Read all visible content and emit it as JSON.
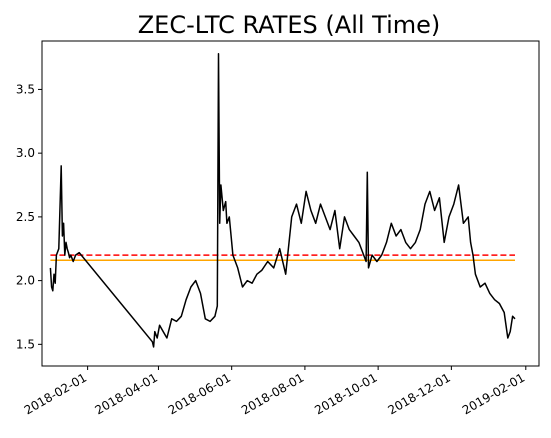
{
  "chart_data": {
    "type": "line",
    "title": "ZEC-LTC RATES (All Time)",
    "xlabel": "",
    "ylabel": "",
    "x_ticks": [
      "2018-02-01",
      "2018-04-01",
      "2018-06-01",
      "2018-08-01",
      "2018-10-01",
      "2018-12-01",
      "2019-02-01"
    ],
    "y_ticks": [
      "1.5",
      "2.0",
      "2.5",
      "3.0",
      "3.5"
    ],
    "xlim": [
      "2017-12-25",
      "2019-02-12"
    ],
    "ylim": [
      1.33,
      3.88
    ],
    "grid": false,
    "legend": "none",
    "series": [
      {
        "color": "#000000",
        "x": [
          "2018-01-01",
          "2018-01-02",
          "2018-01-03",
          "2018-01-04",
          "2018-01-05",
          "2018-01-06",
          "2018-01-08",
          "2018-01-10",
          "2018-01-11",
          "2018-01-12",
          "2018-01-13",
          "2018-01-14",
          "2018-01-15",
          "2018-01-16",
          "2018-01-17",
          "2018-01-18",
          "2018-01-20",
          "2018-01-22",
          "2018-01-25",
          "2018-03-27",
          "2018-03-28",
          "2018-03-29",
          "2018-03-31",
          "2018-04-02",
          "2018-04-05",
          "2018-04-08",
          "2018-04-12",
          "2018-04-16",
          "2018-04-20",
          "2018-04-24",
          "2018-04-28",
          "2018-05-02",
          "2018-05-06",
          "2018-05-10",
          "2018-05-14",
          "2018-05-18",
          "2018-05-20",
          "2018-05-21",
          "2018-05-22",
          "2018-05-23",
          "2018-05-25",
          "2018-05-27",
          "2018-05-28",
          "2018-05-30",
          "2018-06-02",
          "2018-06-06",
          "2018-06-10",
          "2018-06-14",
          "2018-06-18",
          "2018-06-22",
          "2018-06-26",
          "2018-07-01",
          "2018-07-06",
          "2018-07-11",
          "2018-07-16",
          "2018-07-21",
          "2018-07-25",
          "2018-07-29",
          "2018-08-02",
          "2018-08-06",
          "2018-08-10",
          "2018-08-14",
          "2018-08-18",
          "2018-08-22",
          "2018-08-26",
          "2018-08-30",
          "2018-09-03",
          "2018-09-07",
          "2018-09-11",
          "2018-09-15",
          "2018-09-19",
          "2018-09-21",
          "2018-09-22",
          "2018-09-23",
          "2018-09-26",
          "2018-09-30",
          "2018-10-04",
          "2018-10-08",
          "2018-10-12",
          "2018-10-16",
          "2018-10-20",
          "2018-10-24",
          "2018-10-28",
          "2018-11-01",
          "2018-11-05",
          "2018-11-09",
          "2018-11-13",
          "2018-11-17",
          "2018-11-21",
          "2018-11-25",
          "2018-11-29",
          "2018-12-03",
          "2018-12-07",
          "2018-12-11",
          "2018-12-15",
          "2018-12-17",
          "2018-12-19",
          "2018-12-21",
          "2018-12-25",
          "2018-12-29",
          "2019-01-02",
          "2019-01-06",
          "2019-01-10",
          "2019-01-14",
          "2019-01-17",
          "2019-01-19",
          "2019-01-21",
          "2019-01-23"
        ],
        "y": [
          2.1,
          1.95,
          1.92,
          2.05,
          1.98,
          2.2,
          2.25,
          2.9,
          2.35,
          2.45,
          2.2,
          2.3,
          2.25,
          2.22,
          2.18,
          2.2,
          2.15,
          2.2,
          2.22,
          1.52,
          1.48,
          1.6,
          1.55,
          1.65,
          1.6,
          1.55,
          1.7,
          1.68,
          1.72,
          1.85,
          1.95,
          2.0,
          1.9,
          1.7,
          1.68,
          1.72,
          1.8,
          3.78,
          2.45,
          2.75,
          2.55,
          2.62,
          2.45,
          2.5,
          2.2,
          2.1,
          1.95,
          2.0,
          1.98,
          2.05,
          2.08,
          2.15,
          2.1,
          2.25,
          2.05,
          2.5,
          2.6,
          2.45,
          2.7,
          2.55,
          2.45,
          2.6,
          2.5,
          2.4,
          2.55,
          2.25,
          2.5,
          2.4,
          2.35,
          2.3,
          2.2,
          2.15,
          2.85,
          2.1,
          2.2,
          2.15,
          2.2,
          2.3,
          2.45,
          2.35,
          2.4,
          2.3,
          2.25,
          2.3,
          2.4,
          2.6,
          2.7,
          2.55,
          2.65,
          2.3,
          2.5,
          2.6,
          2.75,
          2.45,
          2.5,
          2.3,
          2.2,
          2.05,
          1.95,
          1.98,
          1.9,
          1.85,
          1.82,
          1.75,
          1.55,
          1.6,
          1.72,
          1.7
        ]
      }
    ],
    "hlines": [
      {
        "y": 2.2,
        "color": "#ff0000",
        "style": "dashed"
      },
      {
        "y": 2.16,
        "color": "#ffa500",
        "style": "solid"
      }
    ]
  }
}
